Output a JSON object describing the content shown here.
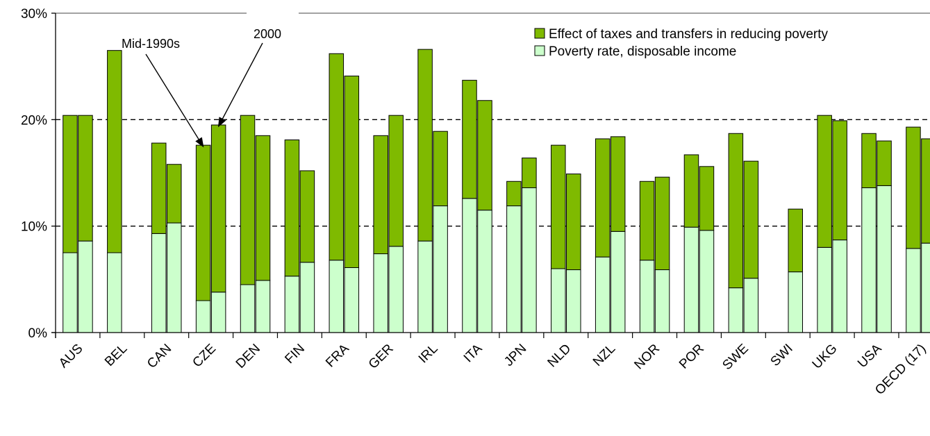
{
  "chart_data": {
    "type": "bar",
    "stacked": true,
    "y_axis": {
      "min": 0,
      "max": 30,
      "ticks": [
        0,
        10,
        20,
        30
      ],
      "tick_labels": [
        "0%",
        "10%",
        "20%",
        "30%"
      ],
      "gridlines": [
        10,
        20
      ],
      "grid_style": "dashed"
    },
    "categories": [
      "AUS",
      "BEL",
      "CAN",
      "CZE",
      "DEN",
      "FIN",
      "FRA",
      "GER",
      "IRL",
      "ITA",
      "JPN",
      "NLD",
      "NZL",
      "NOR",
      "POR",
      "SWE",
      "SWI",
      "UKG",
      "USA",
      "OECD (17)"
    ],
    "legend": {
      "position": "top-right",
      "entries": [
        {
          "label": "Effect of taxes and transfers in reducing poverty",
          "color": "#7fba00"
        },
        {
          "label": "Poverty rate, disposable income",
          "color": "#ccffcc"
        }
      ]
    },
    "annotations": [
      {
        "text": "Mid-1990s",
        "points_to": {
          "category": "CZE",
          "period": "Mid-1990s"
        }
      },
      {
        "text": "2000",
        "points_to": {
          "category": "CZE",
          "period": "2000"
        }
      }
    ],
    "series": [
      {
        "name": "Poverty rate, disposable income",
        "color": "#ccffcc",
        "mid_1990s": [
          7.5,
          7.5,
          9.3,
          3.0,
          4.5,
          5.3,
          6.8,
          7.4,
          8.6,
          12.6,
          11.9,
          6.0,
          7.1,
          6.8,
          9.9,
          4.2,
          null,
          8.0,
          13.6,
          7.9
        ],
        "year_2000": [
          8.6,
          null,
          10.3,
          3.8,
          4.9,
          6.6,
          6.1,
          8.1,
          11.9,
          11.5,
          13.6,
          5.9,
          9.5,
          5.9,
          9.6,
          5.1,
          5.7,
          8.7,
          13.8,
          8.4
        ]
      },
      {
        "name": "Effect of taxes and transfers in reducing poverty",
        "color": "#7fba00",
        "mid_1990s": [
          12.9,
          19.0,
          8.5,
          14.6,
          15.9,
          12.8,
          19.4,
          11.1,
          18.0,
          11.1,
          2.3,
          11.6,
          11.1,
          7.4,
          6.8,
          14.5,
          null,
          12.4,
          5.1,
          11.4
        ],
        "year_2000": [
          11.8,
          null,
          5.5,
          15.7,
          13.6,
          8.6,
          18.0,
          12.3,
          7.0,
          10.3,
          2.8,
          9.0,
          8.9,
          8.7,
          6.0,
          11.0,
          5.9,
          11.2,
          4.2,
          9.8
        ]
      }
    ]
  }
}
